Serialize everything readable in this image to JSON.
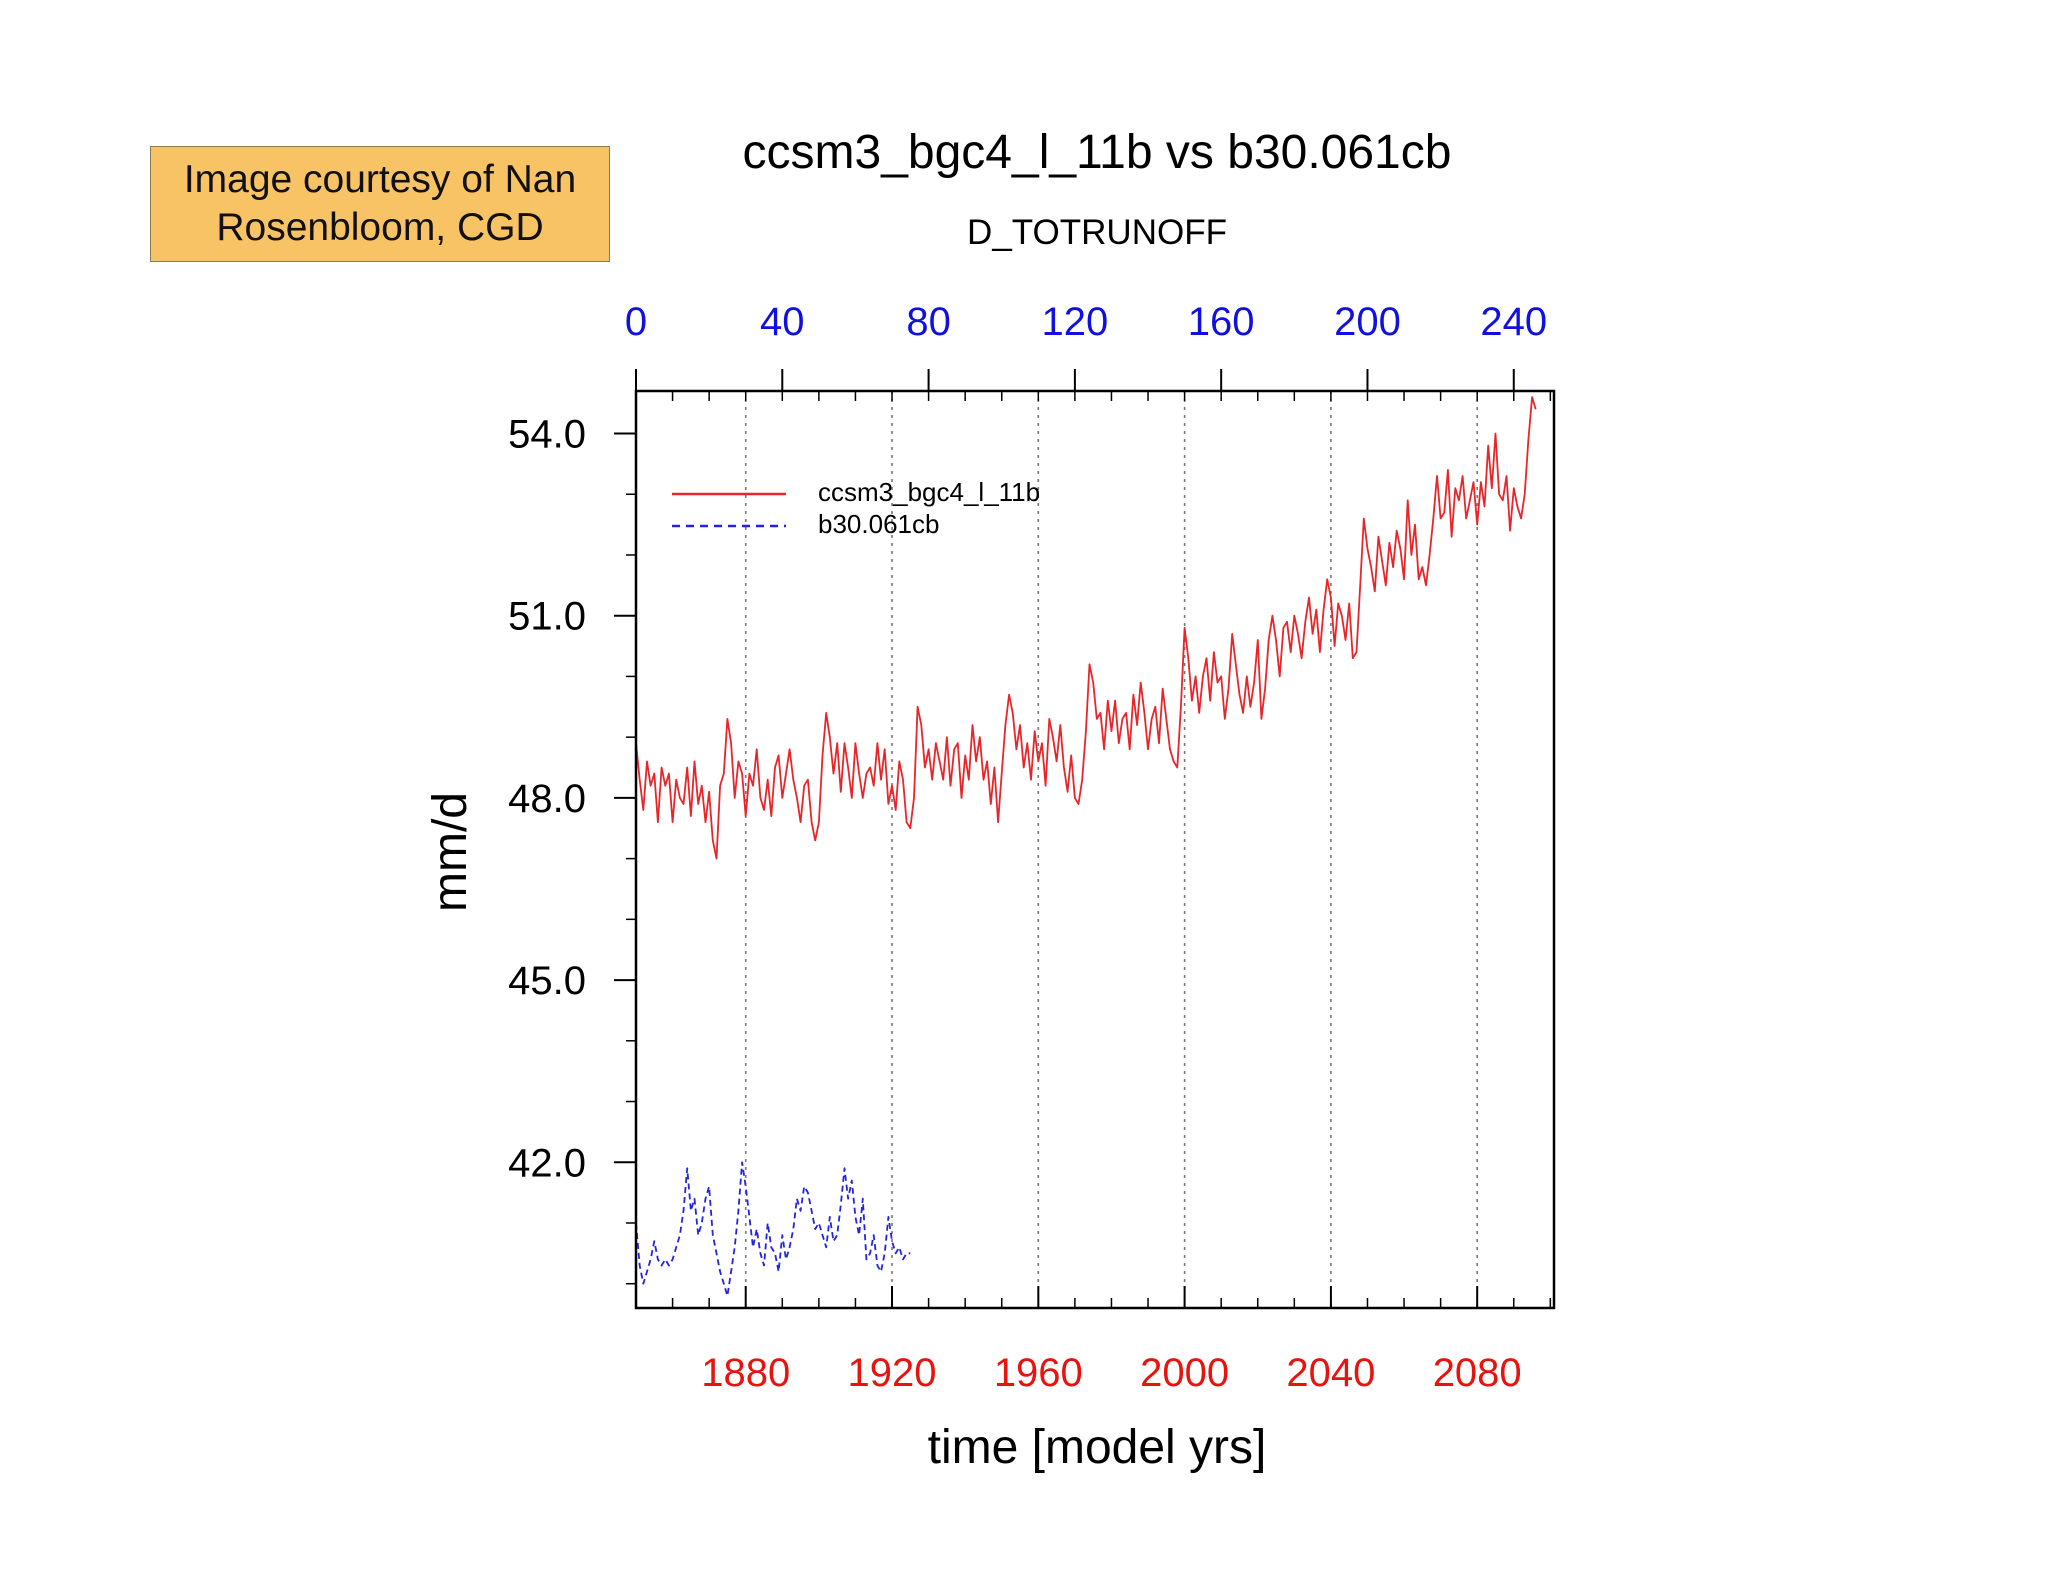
{
  "annotation": {
    "line1": "Image courtesy of Nan",
    "line2": "Rosenbloom, CGD",
    "bg_color": "#f8c365"
  },
  "chart_data": {
    "type": "line",
    "title": "ccsm3_bgc4_l_11b vs b30.061cb",
    "subtitle": "D_TOTRUNOFF",
    "xlabel": "time [model yrs]",
    "ylabel": "mm/d",
    "xlim": [
      1850,
      2101
    ],
    "ylim": [
      39.6,
      54.7
    ],
    "bottom_axis": {
      "color": "#e8120f",
      "ticks": [
        1880,
        1920,
        1960,
        2000,
        2040,
        2080
      ],
      "labels": [
        "1880",
        "1920",
        "1960",
        "2000",
        "2040",
        "2080"
      ]
    },
    "top_axis": {
      "color": "#1010e0",
      "ticks": [
        1850,
        1890,
        1930,
        1970,
        2010,
        2050,
        2090
      ],
      "labels": [
        "0",
        "40",
        "80",
        "120",
        "160",
        "200",
        "240"
      ]
    },
    "y_ticks": [
      42.0,
      45.0,
      48.0,
      51.0,
      54.0
    ],
    "y_tick_labels": [
      "42.0",
      "45.0",
      "48.0",
      "51.0",
      "54.0"
    ],
    "grid": "vertical dotted at bottom-axis ticks",
    "legend_position": "top-left",
    "series": [
      {
        "name": "ccsm3_bgc4_l_11b",
        "color": "#e8262a",
        "style": "solid",
        "x_start": 1850,
        "values": [
          48.9,
          48.3,
          47.8,
          48.6,
          48.2,
          48.4,
          47.6,
          48.5,
          48.2,
          48.4,
          47.6,
          48.3,
          48.0,
          47.9,
          48.5,
          47.7,
          48.6,
          47.9,
          48.2,
          47.6,
          48.1,
          47.3,
          47.0,
          48.2,
          48.4,
          49.3,
          48.9,
          48.0,
          48.6,
          48.4,
          47.7,
          48.4,
          48.2,
          48.8,
          48.0,
          47.8,
          48.3,
          47.7,
          48.5,
          48.7,
          48.0,
          48.4,
          48.8,
          48.3,
          48.0,
          47.6,
          48.2,
          48.3,
          47.6,
          47.3,
          47.6,
          48.7,
          49.4,
          49.0,
          48.4,
          48.9,
          48.1,
          48.9,
          48.5,
          48.0,
          48.9,
          48.4,
          48.0,
          48.4,
          48.5,
          48.2,
          48.9,
          48.3,
          48.8,
          47.9,
          48.2,
          47.8,
          48.6,
          48.3,
          47.6,
          47.5,
          48.0,
          49.5,
          49.2,
          48.5,
          48.8,
          48.3,
          48.9,
          48.6,
          48.3,
          49.0,
          48.2,
          48.8,
          48.9,
          48.0,
          48.7,
          48.3,
          49.2,
          48.6,
          49.0,
          48.3,
          48.6,
          47.9,
          48.5,
          47.6,
          48.4,
          49.2,
          49.7,
          49.4,
          48.8,
          49.2,
          48.5,
          48.9,
          48.3,
          49.1,
          48.6,
          48.9,
          48.2,
          49.3,
          49.0,
          48.6,
          49.2,
          48.5,
          48.1,
          48.7,
          48.0,
          47.9,
          48.3,
          49.1,
          50.2,
          49.9,
          49.3,
          49.4,
          48.8,
          49.6,
          49.1,
          49.6,
          48.9,
          49.3,
          49.4,
          48.8,
          49.7,
          49.2,
          49.9,
          49.4,
          48.8,
          49.3,
          49.5,
          48.9,
          49.8,
          49.3,
          48.8,
          48.6,
          48.5,
          49.5,
          50.8,
          50.3,
          49.6,
          50.0,
          49.4,
          50.0,
          50.3,
          49.6,
          50.4,
          49.9,
          50.0,
          49.3,
          49.8,
          50.7,
          50.2,
          49.7,
          49.4,
          50.0,
          49.5,
          49.9,
          50.6,
          49.3,
          49.8,
          50.6,
          51.0,
          50.6,
          50.0,
          50.8,
          50.9,
          50.4,
          51.0,
          50.7,
          50.3,
          50.9,
          51.3,
          50.7,
          51.1,
          50.4,
          51.1,
          51.6,
          51.3,
          50.5,
          51.2,
          51.0,
          50.6,
          51.2,
          50.3,
          50.4,
          51.5,
          52.6,
          52.1,
          51.8,
          51.4,
          52.3,
          51.9,
          51.5,
          52.2,
          51.8,
          52.4,
          52.1,
          51.6,
          52.9,
          52.0,
          52.5,
          51.6,
          51.8,
          51.5,
          52.0,
          52.6,
          53.3,
          52.6,
          52.7,
          53.4,
          52.3,
          53.1,
          52.9,
          53.3,
          52.6,
          52.9,
          53.2,
          52.5,
          53.2,
          52.8,
          53.8,
          53.1,
          54.0,
          53.0,
          52.9,
          53.3,
          52.4,
          53.1,
          52.8,
          52.6,
          53.0,
          53.9,
          54.6,
          54.4
        ]
      },
      {
        "name": "b30.061cb",
        "color": "#2424e0",
        "style": "dashed",
        "x_start": 1850,
        "values": [
          41.0,
          40.3,
          40.0,
          40.2,
          40.4,
          40.7,
          40.4,
          40.3,
          40.4,
          40.3,
          40.4,
          40.6,
          40.8,
          41.2,
          41.9,
          41.2,
          41.4,
          40.8,
          41.0,
          41.4,
          41.6,
          40.8,
          40.5,
          40.2,
          40.0,
          39.8,
          40.2,
          40.6,
          41.2,
          42.0,
          41.6,
          41.1,
          40.6,
          40.9,
          40.5,
          40.3,
          41.0,
          40.6,
          40.5,
          40.2,
          40.8,
          40.4,
          40.6,
          40.9,
          41.4,
          41.2,
          41.6,
          41.5,
          41.2,
          40.9,
          41.0,
          40.8,
          40.6,
          41.1,
          40.7,
          40.8,
          41.3,
          41.9,
          41.4,
          41.7,
          41.1,
          40.8,
          41.4,
          40.4,
          40.5,
          40.8,
          40.3,
          40.2,
          40.5,
          41.1,
          40.7,
          40.5,
          40.6,
          40.4,
          40.5,
          40.5
        ]
      }
    ]
  }
}
